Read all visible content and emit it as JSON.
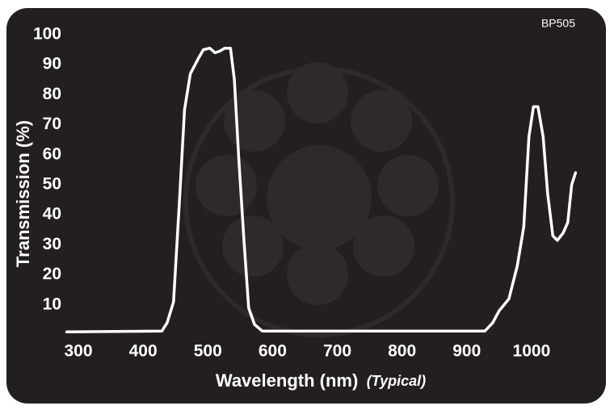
{
  "chart_data": {
    "type": "line",
    "label": "BP505",
    "y_label": "Transmission (%)",
    "x_label": "Wavelength (nm)",
    "x_label_note": "(Typical)",
    "background": "#231f20",
    "color": "#ffffff",
    "x": [
      282,
      429,
      437,
      447,
      456,
      464,
      473,
      485,
      493,
      503,
      511,
      518,
      526,
      535,
      541,
      548,
      556,
      563,
      572,
      584,
      928,
      940,
      950,
      965,
      978,
      988,
      996,
      1003,
      1010,
      1018,
      1025,
      1033,
      1040,
      1049,
      1056,
      1062,
      1068
    ],
    "values": [
      1,
      1.3,
      4,
      11,
      44,
      75,
      87,
      92,
      95,
      95.5,
      94,
      94.5,
      95.5,
      95.5,
      85,
      58,
      31,
      9,
      3.5,
      1.3,
      1.3,
      4,
      8,
      12,
      23,
      36,
      66,
      76,
      76,
      66,
      47,
      33,
      31.5,
      34,
      37.5,
      50,
      54
    ],
    "xlim": [
      280,
      1080
    ],
    "ylim": [
      0,
      100
    ],
    "xticks": [
      300,
      400,
      500,
      600,
      700,
      800,
      900,
      1000
    ],
    "yticks": [
      10,
      20,
      30,
      40,
      50,
      60,
      70,
      80,
      90,
      100
    ]
  }
}
